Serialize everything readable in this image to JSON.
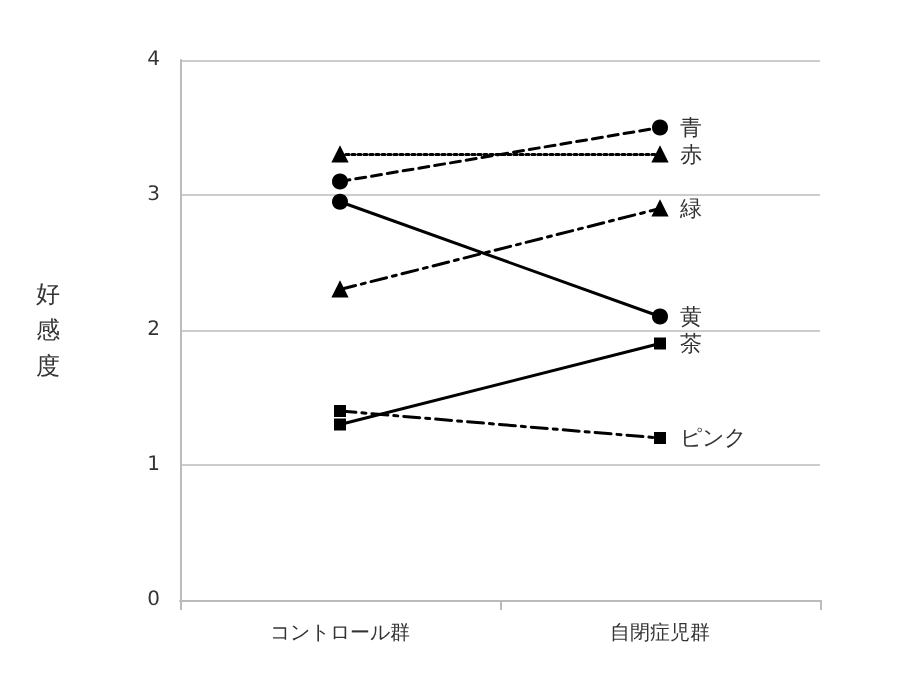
{
  "chart_data": {
    "type": "line",
    "ylabel": "好感度",
    "categories": [
      "コントロール群",
      "自閉症児群"
    ],
    "ylim": [
      0,
      4
    ],
    "yticks": [
      0,
      1,
      2,
      3,
      4
    ],
    "grid": "y",
    "legend": false,
    "series": [
      {
        "name": "青",
        "color": "#000000",
        "values": [
          3.1,
          3.5
        ],
        "marker": "circle",
        "line_style": "dashed"
      },
      {
        "name": "赤",
        "color": "#000000",
        "values": [
          3.3,
          3.3
        ],
        "marker": "triangle",
        "line_style": "dotted"
      },
      {
        "name": "緑",
        "color": "#000000",
        "values": [
          2.3,
          2.9
        ],
        "marker": "triangle",
        "line_style": "dashdot"
      },
      {
        "name": "黄",
        "color": "#000000",
        "values": [
          2.95,
          2.1
        ],
        "marker": "circle",
        "line_style": "solid"
      },
      {
        "name": "茶",
        "color": "#000000",
        "values": [
          1.3,
          1.9
        ],
        "marker": "square",
        "line_style": "solid"
      },
      {
        "name": "ピンク",
        "color": "#000000",
        "values": [
          1.4,
          1.2
        ],
        "marker": "square",
        "line_style": "dashdot"
      }
    ]
  }
}
